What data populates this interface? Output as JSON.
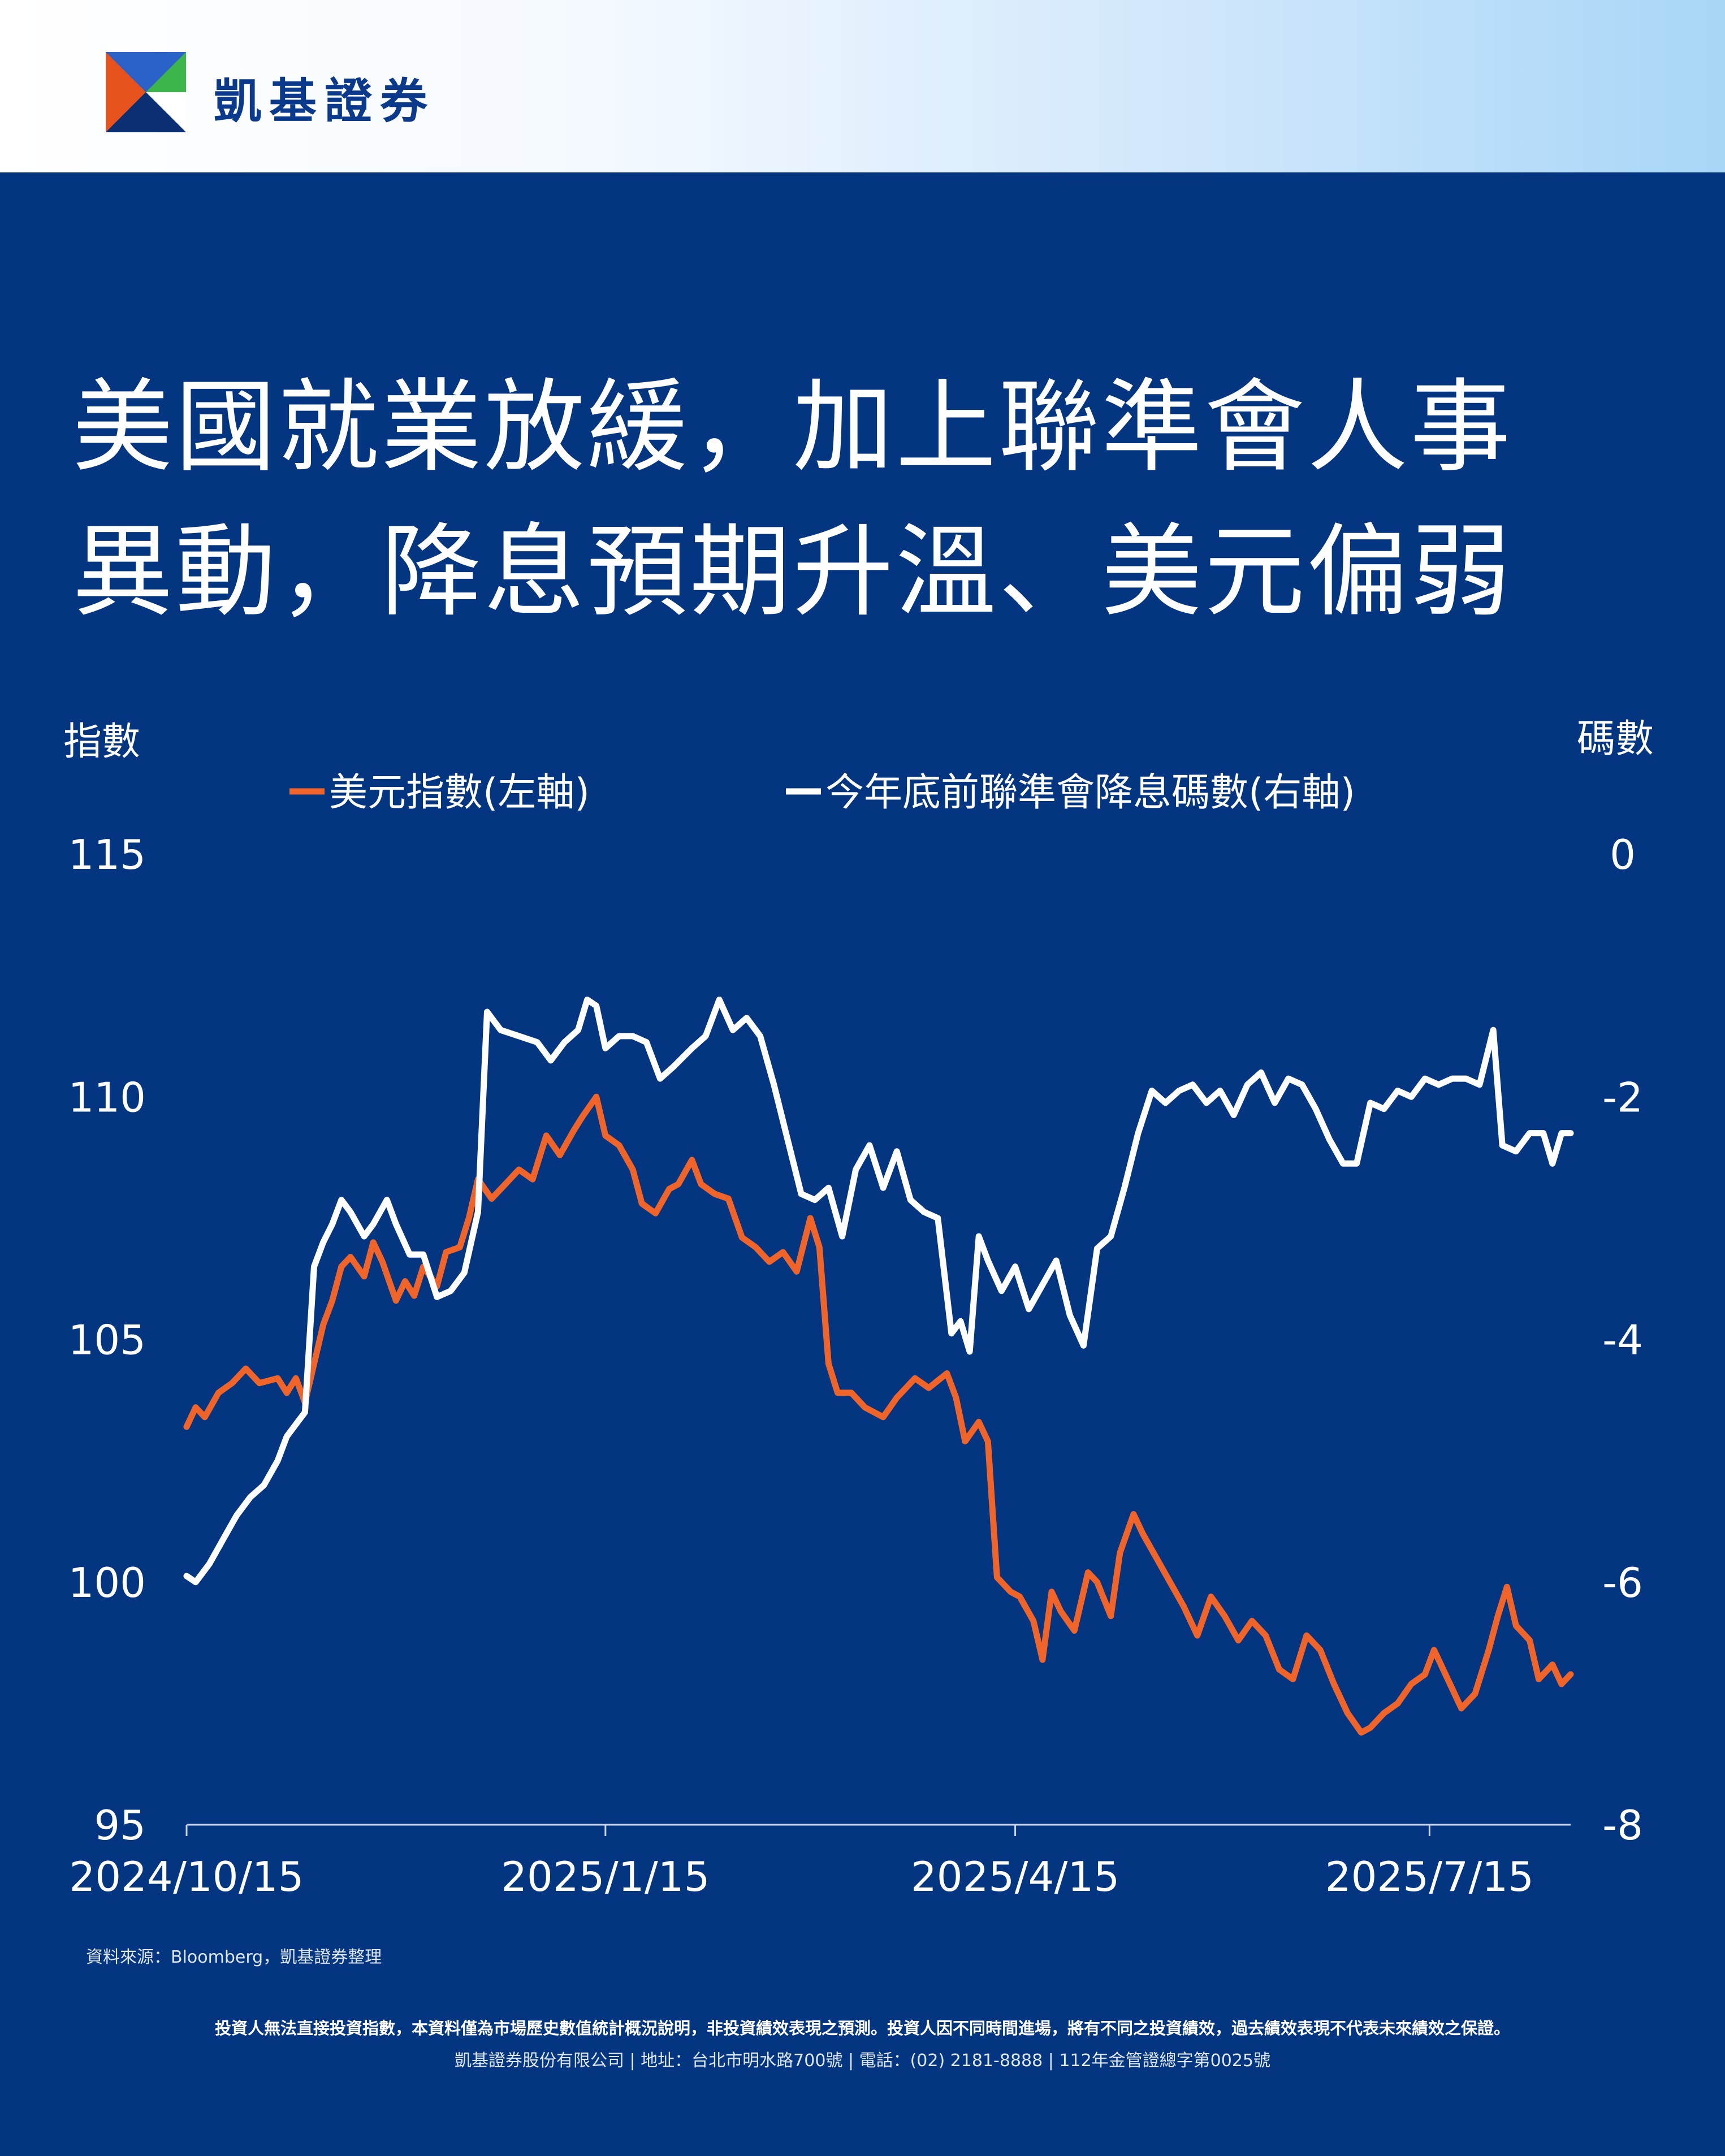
{
  "brand": {
    "name": "凱基證券"
  },
  "title": {
    "line1": "美國就業放緩，加上聯準會人事",
    "line2": "異動，降息預期升溫、美元偏弱"
  },
  "chart_data": {
    "type": "line",
    "left_axis_title": "指數",
    "right_axis_title": "碼數",
    "y_left": {
      "range": [
        95,
        115
      ],
      "ticks": [
        "115",
        "110",
        "105",
        "100",
        "95"
      ]
    },
    "y_right": {
      "range": [
        -8,
        0
      ],
      "ticks": [
        "0",
        "-2",
        "-4",
        "-6",
        "-8"
      ]
    },
    "x_ticks": [
      "2024/10/15",
      "2025/1/15",
      "2025/4/15",
      "2025/7/15"
    ],
    "x_range": [
      "2024-10-15",
      "2025-08-15"
    ],
    "grid": false,
    "legend_position": "top-center",
    "series": [
      {
        "name": "美元指數(左軸)",
        "axis": "left",
        "color": "#f0642a",
        "points": [
          [
            "2024-10-15",
            103.2
          ],
          [
            "2024-10-17",
            103.6
          ],
          [
            "2024-10-19",
            103.4
          ],
          [
            "2024-10-22",
            103.9
          ],
          [
            "2024-10-25",
            104.1
          ],
          [
            "2024-10-28",
            104.4
          ],
          [
            "2024-10-31",
            104.1
          ],
          [
            "2024-11-04",
            104.2
          ],
          [
            "2024-11-06",
            103.9
          ],
          [
            "2024-11-08",
            104.2
          ],
          [
            "2024-11-10",
            103.7
          ],
          [
            "2024-11-12",
            104.5
          ],
          [
            "2024-11-14",
            105.3
          ],
          [
            "2024-11-16",
            105.8
          ],
          [
            "2024-11-18",
            106.5
          ],
          [
            "2024-11-20",
            106.7
          ],
          [
            "2024-11-23",
            106.3
          ],
          [
            "2024-11-25",
            107.0
          ],
          [
            "2024-11-27",
            106.6
          ],
          [
            "2024-11-30",
            105.8
          ],
          [
            "2024-12-02",
            106.2
          ],
          [
            "2024-12-04",
            105.9
          ],
          [
            "2024-12-06",
            106.5
          ],
          [
            "2024-12-09",
            106.1
          ],
          [
            "2024-12-11",
            106.8
          ],
          [
            "2024-12-14",
            106.9
          ],
          [
            "2024-12-16",
            107.5
          ],
          [
            "2024-12-18",
            108.3
          ],
          [
            "2024-12-21",
            107.9
          ],
          [
            "2024-12-24",
            108.2
          ],
          [
            "2024-12-27",
            108.5
          ],
          [
            "2024-12-30",
            108.3
          ],
          [
            "2025-01-02",
            109.2
          ],
          [
            "2025-01-05",
            108.8
          ],
          [
            "2025-01-08",
            109.3
          ],
          [
            "2025-01-10",
            109.6
          ],
          [
            "2025-01-13",
            110.0
          ],
          [
            "2025-01-15",
            109.2
          ],
          [
            "2025-01-18",
            109.0
          ],
          [
            "2025-01-21",
            108.5
          ],
          [
            "2025-01-23",
            107.8
          ],
          [
            "2025-01-26",
            107.6
          ],
          [
            "2025-01-29",
            108.1
          ],
          [
            "2025-01-31",
            108.2
          ],
          [
            "2025-02-03",
            108.7
          ],
          [
            "2025-02-05",
            108.2
          ],
          [
            "2025-02-08",
            108.0
          ],
          [
            "2025-02-11",
            107.9
          ],
          [
            "2025-02-14",
            107.1
          ],
          [
            "2025-02-17",
            106.9
          ],
          [
            "2025-02-20",
            106.6
          ],
          [
            "2025-02-23",
            106.8
          ],
          [
            "2025-02-26",
            106.4
          ],
          [
            "2025-03-01",
            107.5
          ],
          [
            "2025-03-03",
            106.9
          ],
          [
            "2025-03-05",
            104.5
          ],
          [
            "2025-03-07",
            103.9
          ],
          [
            "2025-03-10",
            103.9
          ],
          [
            "2025-03-13",
            103.6
          ],
          [
            "2025-03-17",
            103.4
          ],
          [
            "2025-03-20",
            103.8
          ],
          [
            "2025-03-24",
            104.2
          ],
          [
            "2025-03-27",
            104.0
          ],
          [
            "2025-03-31",
            104.3
          ],
          [
            "2025-04-02",
            103.8
          ],
          [
            "2025-04-04",
            102.9
          ],
          [
            "2025-04-07",
            103.3
          ],
          [
            "2025-04-09",
            102.9
          ],
          [
            "2025-04-11",
            100.1
          ],
          [
            "2025-04-14",
            99.8
          ],
          [
            "2025-04-16",
            99.7
          ],
          [
            "2025-04-19",
            99.2
          ],
          [
            "2025-04-21",
            98.4
          ],
          [
            "2025-04-23",
            99.8
          ],
          [
            "2025-04-25",
            99.4
          ],
          [
            "2025-04-28",
            99.0
          ],
          [
            "2025-05-01",
            100.2
          ],
          [
            "2025-05-03",
            100.0
          ],
          [
            "2025-05-06",
            99.3
          ],
          [
            "2025-05-08",
            100.6
          ],
          [
            "2025-05-11",
            101.4
          ],
          [
            "2025-05-13",
            101.0
          ],
          [
            "2025-05-16",
            100.5
          ],
          [
            "2025-05-19",
            100.0
          ],
          [
            "2025-05-22",
            99.5
          ],
          [
            "2025-05-25",
            98.9
          ],
          [
            "2025-05-28",
            99.7
          ],
          [
            "2025-05-31",
            99.3
          ],
          [
            "2025-06-03",
            98.8
          ],
          [
            "2025-06-06",
            99.2
          ],
          [
            "2025-06-09",
            98.9
          ],
          [
            "2025-06-12",
            98.2
          ],
          [
            "2025-06-15",
            98.0
          ],
          [
            "2025-06-18",
            98.9
          ],
          [
            "2025-06-21",
            98.6
          ],
          [
            "2025-06-24",
            97.9
          ],
          [
            "2025-06-27",
            97.3
          ],
          [
            "2025-06-30",
            96.9
          ],
          [
            "2025-07-02",
            97.0
          ],
          [
            "2025-07-05",
            97.3
          ],
          [
            "2025-07-08",
            97.5
          ],
          [
            "2025-07-11",
            97.9
          ],
          [
            "2025-07-14",
            98.1
          ],
          [
            "2025-07-16",
            98.6
          ],
          [
            "2025-07-19",
            98.0
          ],
          [
            "2025-07-22",
            97.4
          ],
          [
            "2025-07-25",
            97.7
          ],
          [
            "2025-07-28",
            98.6
          ],
          [
            "2025-07-30",
            99.3
          ],
          [
            "2025-08-01",
            99.9
          ],
          [
            "2025-08-03",
            99.1
          ],
          [
            "2025-08-06",
            98.8
          ],
          [
            "2025-08-08",
            98.0
          ],
          [
            "2025-08-11",
            98.3
          ],
          [
            "2025-08-13",
            97.9
          ],
          [
            "2025-08-15",
            98.1
          ]
        ]
      },
      {
        "name": "今年底前聯準會降息碼數(右軸)",
        "axis": "right",
        "color": "#ffffff",
        "points": [
          [
            "2024-10-15",
            -5.95
          ],
          [
            "2024-10-17",
            -6.0
          ],
          [
            "2024-10-20",
            -5.85
          ],
          [
            "2024-10-23",
            -5.65
          ],
          [
            "2024-10-26",
            -5.45
          ],
          [
            "2024-10-29",
            -5.3
          ],
          [
            "2024-11-01",
            -5.2
          ],
          [
            "2024-11-04",
            -5.0
          ],
          [
            "2024-11-06",
            -4.8
          ],
          [
            "2024-11-08",
            -4.7
          ],
          [
            "2024-11-10",
            -4.6
          ],
          [
            "2024-11-12",
            -3.4
          ],
          [
            "2024-11-14",
            -3.2
          ],
          [
            "2024-11-16",
            -3.05
          ],
          [
            "2024-11-18",
            -2.85
          ],
          [
            "2024-11-20",
            -2.95
          ],
          [
            "2024-11-23",
            -3.15
          ],
          [
            "2024-11-25",
            -3.05
          ],
          [
            "2024-11-28",
            -2.85
          ],
          [
            "2024-11-30",
            -3.05
          ],
          [
            "2024-12-03",
            -3.3
          ],
          [
            "2024-12-06",
            -3.3
          ],
          [
            "2024-12-09",
            -3.65
          ],
          [
            "2024-12-12",
            -3.6
          ],
          [
            "2024-12-15",
            -3.45
          ],
          [
            "2024-12-18",
            -2.95
          ],
          [
            "2024-12-20",
            -1.3
          ],
          [
            "2024-12-23",
            -1.45
          ],
          [
            "2024-12-27",
            -1.5
          ],
          [
            "2024-12-31",
            -1.55
          ],
          [
            "2025-01-03",
            -1.7
          ],
          [
            "2025-01-06",
            -1.55
          ],
          [
            "2025-01-09",
            -1.45
          ],
          [
            "2025-01-11",
            -1.2
          ],
          [
            "2025-01-13",
            -1.25
          ],
          [
            "2025-01-15",
            -1.6
          ],
          [
            "2025-01-18",
            -1.5
          ],
          [
            "2025-01-21",
            -1.5
          ],
          [
            "2025-01-24",
            -1.55
          ],
          [
            "2025-01-27",
            -1.85
          ],
          [
            "2025-01-30",
            -1.75
          ],
          [
            "2025-02-03",
            -1.6
          ],
          [
            "2025-02-06",
            -1.5
          ],
          [
            "2025-02-09",
            -1.2
          ],
          [
            "2025-02-12",
            -1.45
          ],
          [
            "2025-02-15",
            -1.35
          ],
          [
            "2025-02-18",
            -1.5
          ],
          [
            "2025-02-21",
            -1.9
          ],
          [
            "2025-02-24",
            -2.35
          ],
          [
            "2025-02-27",
            -2.8
          ],
          [
            "2025-03-02",
            -2.85
          ],
          [
            "2025-03-05",
            -2.75
          ],
          [
            "2025-03-08",
            -3.15
          ],
          [
            "2025-03-11",
            -2.6
          ],
          [
            "2025-03-14",
            -2.4
          ],
          [
            "2025-03-17",
            -2.75
          ],
          [
            "2025-03-20",
            -2.45
          ],
          [
            "2025-03-23",
            -2.85
          ],
          [
            "2025-03-26",
            -2.95
          ],
          [
            "2025-03-29",
            -3.0
          ],
          [
            "2025-04-01",
            -3.95
          ],
          [
            "2025-04-03",
            -3.85
          ],
          [
            "2025-04-05",
            -4.1
          ],
          [
            "2025-04-07",
            -3.15
          ],
          [
            "2025-04-09",
            -3.35
          ],
          [
            "2025-04-12",
            -3.6
          ],
          [
            "2025-04-15",
            -3.4
          ],
          [
            "2025-04-18",
            -3.75
          ],
          [
            "2025-04-21",
            -3.55
          ],
          [
            "2025-04-24",
            -3.35
          ],
          [
            "2025-04-27",
            -3.8
          ],
          [
            "2025-04-30",
            -4.05
          ],
          [
            "2025-05-03",
            -3.25
          ],
          [
            "2025-05-06",
            -3.15
          ],
          [
            "2025-05-09",
            -2.75
          ],
          [
            "2025-05-12",
            -2.3
          ],
          [
            "2025-05-15",
            -1.95
          ],
          [
            "2025-05-18",
            -2.05
          ],
          [
            "2025-05-21",
            -1.95
          ],
          [
            "2025-05-24",
            -1.9
          ],
          [
            "2025-05-27",
            -2.05
          ],
          [
            "2025-05-30",
            -1.95
          ],
          [
            "2025-06-02",
            -2.15
          ],
          [
            "2025-06-05",
            -1.9
          ],
          [
            "2025-06-08",
            -1.8
          ],
          [
            "2025-06-11",
            -2.05
          ],
          [
            "2025-06-14",
            -1.85
          ],
          [
            "2025-06-17",
            -1.9
          ],
          [
            "2025-06-20",
            -2.1
          ],
          [
            "2025-06-23",
            -2.35
          ],
          [
            "2025-06-26",
            -2.55
          ],
          [
            "2025-06-29",
            -2.55
          ],
          [
            "2025-07-02",
            -2.05
          ],
          [
            "2025-07-05",
            -2.1
          ],
          [
            "2025-07-08",
            -1.95
          ],
          [
            "2025-07-11",
            -2.0
          ],
          [
            "2025-07-14",
            -1.85
          ],
          [
            "2025-07-17",
            -1.9
          ],
          [
            "2025-07-20",
            -1.85
          ],
          [
            "2025-07-23",
            -1.85
          ],
          [
            "2025-07-26",
            -1.9
          ],
          [
            "2025-07-29",
            -1.45
          ],
          [
            "2025-07-31",
            -2.4
          ],
          [
            "2025-08-03",
            -2.45
          ],
          [
            "2025-08-06",
            -2.3
          ],
          [
            "2025-08-09",
            -2.3
          ],
          [
            "2025-08-11",
            -2.55
          ],
          [
            "2025-08-13",
            -2.3
          ],
          [
            "2025-08-15",
            -2.3
          ]
        ]
      }
    ]
  },
  "footer": {
    "source": "資料來源：Bloomberg，凱基證券整理",
    "disclaimer": "投資人無法直接投資指數，本資料僅為市場歷史數值統計概況說明，非投資績效表現之預測。投資人因不同時間進場，將有不同之投資績效，過去績效表現不代表未來績效之保證。",
    "company": "凱基證券股份有限公司 | 地址：台北市明水路700號 | 電話：(02) 2181-8888 | 112年金管證總字第0025號"
  },
  "colors": {
    "background": "#033580",
    "usd_line": "#f0642a",
    "cuts_line": "#ffffff"
  }
}
